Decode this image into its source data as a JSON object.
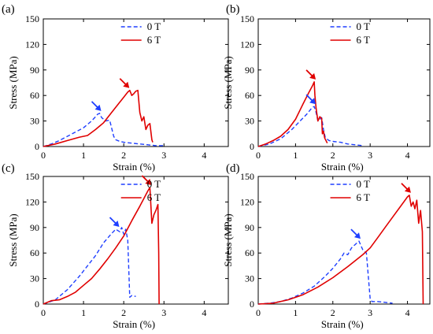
{
  "legend": {
    "series_a": "0 T",
    "series_b": "6 T"
  },
  "colors": {
    "series_a": "#1f3fff",
    "series_b": "#e00000",
    "axis": "#000000"
  },
  "chart_data": [
    {
      "type": "line",
      "panel_label": "(a)",
      "xlabel": "Strain (%)",
      "ylabel": "Stress (MPa)",
      "xlim": [
        0,
        4.6
      ],
      "ylim": [
        0,
        150
      ],
      "xticks": [
        0,
        1,
        2,
        3,
        4
      ],
      "yticks": [
        0,
        30,
        60,
        90,
        120,
        150
      ],
      "grid": false,
      "legend_position": "top-right",
      "series": [
        {
          "name": "0 T",
          "style": "dashed",
          "x": [
            0,
            0.2,
            0.4,
            0.6,
            0.8,
            1.0,
            1.2,
            1.3,
            1.35,
            1.4,
            1.45,
            1.55,
            1.65,
            1.75,
            1.8,
            1.9,
            2.0,
            2.2,
            2.4,
            2.6,
            2.8,
            3.0
          ],
          "y": [
            0,
            3,
            7,
            12,
            17,
            22,
            30,
            35,
            38,
            39,
            34,
            30,
            31,
            12,
            8,
            6,
            5,
            4,
            3,
            2,
            1,
            1
          ]
        },
        {
          "name": "6 T",
          "style": "solid",
          "x": [
            0,
            0.3,
            0.6,
            0.9,
            1.1,
            1.3,
            1.5,
            1.7,
            1.9,
            2.0,
            2.1,
            2.15,
            2.2,
            2.25,
            2.3,
            2.35,
            2.4,
            2.45,
            2.5,
            2.55,
            2.6,
            2.65,
            2.7,
            2.72
          ],
          "y": [
            0,
            3,
            7,
            11,
            13,
            20,
            28,
            40,
            52,
            58,
            64,
            66,
            60,
            62,
            65,
            66,
            40,
            30,
            35,
            20,
            25,
            27,
            8,
            5
          ]
        }
      ],
      "arrows": [
        {
          "series": "0 T",
          "x": 1.4,
          "y": 39
        },
        {
          "series": "6 T",
          "x": 2.1,
          "y": 66
        }
      ]
    },
    {
      "type": "line",
      "panel_label": "(b)",
      "xlabel": "Strain (%)",
      "ylabel": "Stress (MPa)",
      "xlim": [
        0,
        4.6
      ],
      "ylim": [
        0,
        150
      ],
      "xticks": [
        0,
        1,
        2,
        3,
        4
      ],
      "yticks": [
        0,
        30,
        60,
        90,
        120,
        150
      ],
      "grid": false,
      "legend_position": "top-right",
      "series": [
        {
          "name": "0 T",
          "style": "dashed",
          "x": [
            0,
            0.3,
            0.6,
            0.9,
            1.1,
            1.3,
            1.45,
            1.5,
            1.55,
            1.6,
            1.7,
            1.75,
            1.8,
            1.9,
            2.0,
            2.2,
            2.4,
            2.6,
            2.8
          ],
          "y": [
            0,
            3,
            9,
            20,
            29,
            38,
            46,
            47,
            40,
            30,
            34,
            20,
            10,
            7,
            6,
            5,
            3,
            2,
            1
          ]
        },
        {
          "name": "6 T",
          "style": "solid",
          "x": [
            0,
            0.2,
            0.4,
            0.6,
            0.8,
            1.0,
            1.2,
            1.35,
            1.45,
            1.5,
            1.52,
            1.55,
            1.6,
            1.65,
            1.7,
            1.72,
            1.75,
            1.78,
            1.85
          ],
          "y": [
            0,
            3,
            7,
            12,
            20,
            32,
            50,
            63,
            71,
            76,
            60,
            45,
            30,
            35,
            33,
            15,
            18,
            10,
            4
          ]
        }
      ],
      "arrows": [
        {
          "series": "0 T",
          "x": 1.5,
          "y": 47
        },
        {
          "series": "6 T",
          "x": 1.5,
          "y": 76
        }
      ]
    },
    {
      "type": "line",
      "panel_label": "(c)",
      "xlabel": "Strain (%)",
      "ylabel": "Stress (MPa)",
      "xlim": [
        0,
        4.6
      ],
      "ylim": [
        0,
        150
      ],
      "xticks": [
        0,
        1,
        2,
        3,
        4
      ],
      "yticks": [
        0,
        30,
        60,
        90,
        120,
        150
      ],
      "grid": false,
      "legend_position": "top-right",
      "series": [
        {
          "name": "0 T",
          "style": "dashed",
          "x": [
            0,
            0.3,
            0.6,
            0.9,
            1.1,
            1.3,
            1.5,
            1.7,
            1.8,
            1.9,
            1.95,
            2.0,
            2.05,
            2.1,
            2.15,
            2.2,
            2.3
          ],
          "y": [
            0,
            5,
            17,
            33,
            45,
            57,
            72,
            83,
            88,
            85,
            90,
            82,
            88,
            75,
            8,
            10,
            9
          ]
        },
        {
          "name": "6 T",
          "style": "solid",
          "x": [
            0,
            0.2,
            0.4,
            0.6,
            0.8,
            1.0,
            1.2,
            1.4,
            1.6,
            1.8,
            2.0,
            2.2,
            2.4,
            2.5,
            2.6,
            2.65,
            2.7,
            2.75,
            2.8,
            2.85,
            2.87,
            2.88
          ],
          "y": [
            0,
            4,
            5,
            9,
            14,
            22,
            30,
            41,
            53,
            66,
            80,
            98,
            115,
            124,
            133,
            137,
            95,
            105,
            110,
            117,
            60,
            0
          ]
        }
      ],
      "arrows": [
        {
          "series": "0 T",
          "x": 1.85,
          "y": 88
        },
        {
          "series": "6 T",
          "x": 2.65,
          "y": 137
        }
      ]
    },
    {
      "type": "line",
      "panel_label": "(d)",
      "xlabel": "Strain (%)",
      "ylabel": "Stress (MPa)",
      "xlim": [
        0,
        4.6
      ],
      "ylim": [
        0,
        150
      ],
      "xticks": [
        0,
        1,
        2,
        3,
        4
      ],
      "yticks": [
        0,
        30,
        60,
        90,
        120,
        150
      ],
      "grid": false,
      "legend_position": "top-right",
      "series": [
        {
          "name": "0 T",
          "style": "dashed",
          "x": [
            0,
            0.3,
            0.6,
            0.9,
            1.2,
            1.5,
            1.8,
            2.0,
            2.2,
            2.3,
            2.4,
            2.5,
            2.6,
            2.7,
            2.8,
            2.9,
            3.0,
            3.05,
            3.2,
            3.4,
            3.6
          ],
          "y": [
            0,
            1,
            3,
            7,
            13,
            21,
            33,
            42,
            53,
            60,
            58,
            66,
            70,
            74,
            64,
            60,
            6,
            3,
            3,
            2,
            1
          ]
        },
        {
          "name": "6 T",
          "style": "solid",
          "x": [
            0,
            0.4,
            0.8,
            1.2,
            1.6,
            2.0,
            2.4,
            2.8,
            3.0,
            3.2,
            3.4,
            3.6,
            3.8,
            4.0,
            4.05,
            4.1,
            4.15,
            4.2,
            4.25,
            4.3,
            4.35,
            4.4,
            4.42
          ],
          "y": [
            0,
            1,
            5,
            11,
            20,
            31,
            44,
            58,
            66,
            78,
            90,
            102,
            114,
            126,
            128,
            115,
            120,
            112,
            122,
            95,
            110,
            85,
            0
          ]
        }
      ],
      "arrows": [
        {
          "series": "0 T",
          "x": 2.7,
          "y": 74
        },
        {
          "series": "6 T",
          "x": 4.05,
          "y": 128
        }
      ]
    }
  ]
}
